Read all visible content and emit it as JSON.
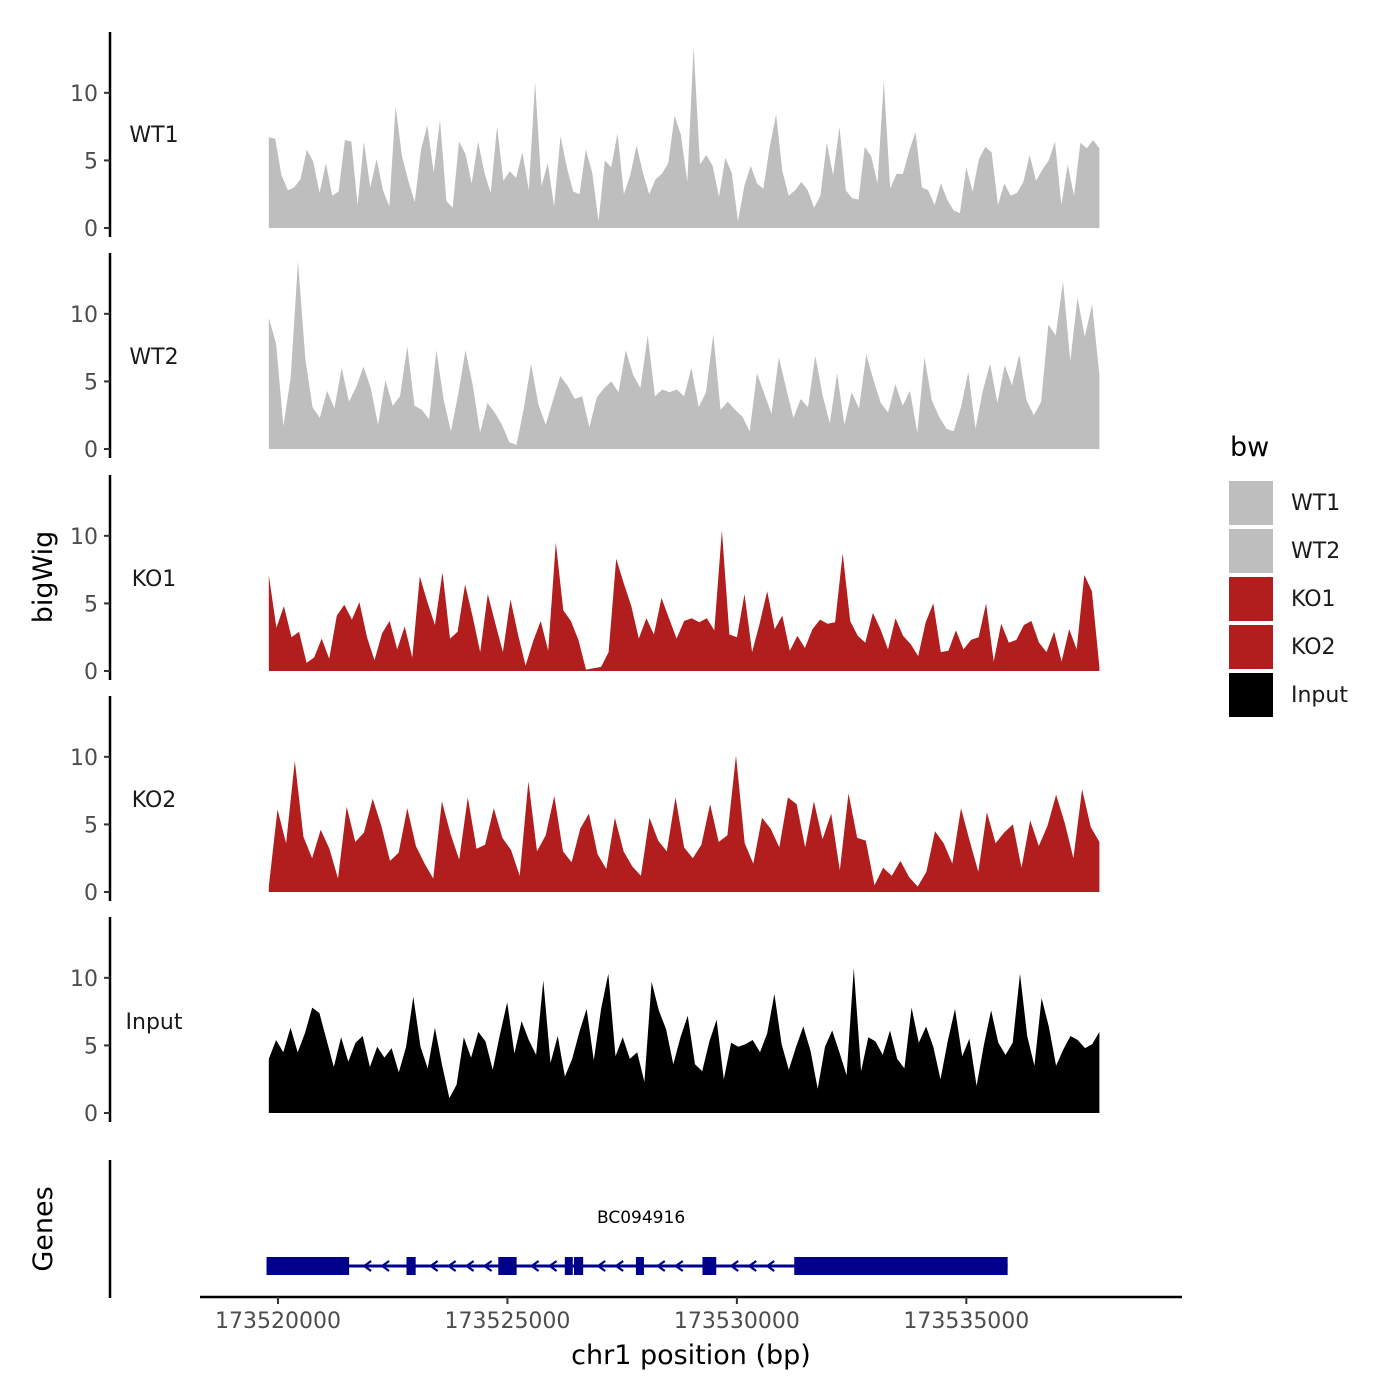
{
  "chart_data": {
    "type": "area",
    "y_axis_title": "bigWig",
    "genes_axis_title": "Genes",
    "xlabel": "chr1 position (bp)",
    "xlim": [
      173518300,
      173539700
    ],
    "x_ticks": [
      173520000,
      173525000,
      173530000,
      173535000
    ],
    "x_tick_labels": [
      "173520000",
      "173525000",
      "173530000",
      "173535000"
    ],
    "ylim": [
      0,
      14.5
    ],
    "y_ticks": [
      0,
      5,
      10
    ],
    "y_tick_labels": [
      "0",
      "5",
      "10"
    ],
    "legend": {
      "title": "bw",
      "position": "right",
      "entries": [
        {
          "label": "WT1",
          "color": "#bebebe"
        },
        {
          "label": "WT2",
          "color": "#bebebe"
        },
        {
          "label": "KO1",
          "color": "#b21d1d"
        },
        {
          "label": "KO2",
          "color": "#b21d1d"
        },
        {
          "label": "Input",
          "color": "#000000"
        }
      ]
    },
    "track_start": 173519800,
    "track_end": 173537900,
    "series": [
      {
        "name": "WT1",
        "color": "#bebebe",
        "values": [
          6.7,
          6.6,
          3.9,
          2.8,
          3.0,
          3.6,
          5.8,
          4.9,
          2.6,
          4.8,
          2.4,
          2.7,
          6.5,
          6.4,
          1.7,
          6.4,
          3.0,
          5.1,
          2.8,
          1.6,
          9.0,
          5.3,
          3.5,
          1.9,
          5.8,
          7.6,
          4.1,
          8.0,
          2.0,
          1.5,
          6.4,
          5.5,
          3.3,
          6.4,
          4.1,
          2.6,
          7.5,
          3.5,
          4.2,
          3.7,
          5.6,
          2.8,
          10.8,
          3.1,
          4.8,
          1.6,
          6.8,
          4.5,
          2.7,
          2.5,
          5.8,
          4.1,
          0.5,
          5.0,
          4.5,
          7.0,
          2.5,
          3.9,
          6.1,
          4.1,
          2.5,
          3.6,
          4.0,
          4.8,
          8.3,
          6.9,
          3.4,
          13.4,
          4.7,
          5.4,
          4.6,
          2.3,
          5.2,
          4.1,
          0.5,
          3.1,
          4.6,
          3.3,
          2.9,
          6.0,
          8.4,
          4.2,
          2.4,
          2.8,
          3.4,
          2.8,
          1.5,
          2.4,
          6.3,
          3.9,
          7.5,
          2.8,
          2.2,
          2.1,
          6.0,
          5.3,
          3.3,
          10.9,
          2.9,
          4.0,
          4.0,
          5.7,
          7.1,
          3.0,
          2.8,
          1.7,
          3.3,
          2.1,
          1.3,
          1.1,
          4.5,
          2.7,
          5.1,
          6.0,
          5.6,
          1.7,
          3.3,
          2.4,
          2.6,
          3.4,
          5.4,
          3.5,
          4.3,
          5.0,
          6.4,
          1.7,
          4.7,
          2.4,
          6.3,
          5.9,
          6.5,
          5.9
        ]
      },
      {
        "name": "WT2",
        "color": "#bebebe",
        "values": [
          9.7,
          7.8,
          1.7,
          5.3,
          13.9,
          6.7,
          3.1,
          2.3,
          4.3,
          3.0,
          6.0,
          3.5,
          4.6,
          6.1,
          4.5,
          1.8,
          5.1,
          3.2,
          3.9,
          7.6,
          3.2,
          2.9,
          2.2,
          7.3,
          3.6,
          1.3,
          4.1,
          7.3,
          4.7,
          1.2,
          3.4,
          2.7,
          1.8,
          0.5,
          0.3,
          3.0,
          6.3,
          3.3,
          1.8,
          3.6,
          5.4,
          4.7,
          3.7,
          3.9,
          1.6,
          3.8,
          4.5,
          5.0,
          4.2,
          7.3,
          5.5,
          4.5,
          8.4,
          3.9,
          4.4,
          4.2,
          4.4,
          3.9,
          6.0,
          3.1,
          4.2,
          8.5,
          2.9,
          3.5,
          2.9,
          2.4,
          1.3,
          5.6,
          4.1,
          2.6,
          6.8,
          4.5,
          2.3,
          3.7,
          3.1,
          6.9,
          4.0,
          1.9,
          5.6,
          1.8,
          4.2,
          3.0,
          7.0,
          5.1,
          3.4,
          2.7,
          4.8,
          3.2,
          4.3,
          1.2,
          6.8,
          3.6,
          2.4,
          1.5,
          1.3,
          3.1,
          5.7,
          1.5,
          4.3,
          6.3,
          3.4,
          6.2,
          4.7,
          7.0,
          3.6,
          2.5,
          3.5,
          9.2,
          8.4,
          12.4,
          6.5,
          11.2,
          8.3,
          10.7,
          5.5
        ]
      },
      {
        "name": "KO1",
        "color": "#b21d1d",
        "values": [
          7.1,
          3.2,
          4.8,
          2.5,
          2.9,
          0.6,
          1.0,
          2.4,
          0.9,
          4.1,
          4.9,
          3.8,
          5.1,
          2.5,
          0.8,
          2.8,
          3.7,
          1.6,
          3.3,
          1.0,
          7.0,
          5.1,
          3.4,
          7.3,
          2.4,
          2.9,
          6.4,
          4.0,
          1.4,
          5.7,
          3.5,
          1.4,
          5.3,
          2.7,
          0.4,
          2.2,
          3.7,
          1.5,
          9.5,
          4.5,
          3.7,
          2.3,
          0.1,
          0.2,
          0.3,
          1.4,
          8.3,
          6.5,
          4.8,
          2.4,
          3.9,
          2.7,
          5.4,
          3.9,
          2.4,
          3.7,
          3.9,
          3.6,
          3.9,
          3.0,
          10.4,
          2.7,
          2.5,
          5.7,
          1.4,
          3.5,
          5.9,
          3.1,
          4.1,
          1.5,
          2.6,
          1.7,
          3.1,
          3.8,
          3.5,
          3.6,
          8.7,
          3.7,
          2.6,
          2.1,
          4.3,
          3.1,
          1.6,
          3.9,
          2.6,
          2.0,
          1.1,
          3.6,
          5.0,
          1.4,
          1.5,
          3.0,
          1.6,
          2.3,
          2.5,
          5.0,
          0.7,
          3.5,
          2.1,
          2.3,
          3.4,
          3.7,
          2.1,
          1.4,
          2.9,
          0.7,
          3.1,
          1.6,
          7.1,
          5.9,
          0.3
        ]
      },
      {
        "name": "KO2",
        "color": "#b21d1d",
        "values": [
          0.4,
          6.1,
          3.6,
          9.7,
          4.1,
          2.5,
          4.6,
          3.2,
          1.0,
          6.3,
          3.7,
          4.4,
          6.9,
          4.9,
          2.3,
          2.9,
          6.2,
          3.4,
          2.1,
          1.0,
          6.7,
          4.3,
          2.4,
          7.0,
          3.2,
          3.5,
          6.2,
          4.0,
          3.1,
          1.2,
          8.2,
          3.0,
          4.2,
          7.1,
          3.0,
          2.2,
          4.7,
          5.8,
          2.8,
          1.7,
          5.5,
          3.0,
          1.9,
          1.2,
          5.5,
          3.8,
          3.0,
          7.0,
          3.3,
          2.5,
          3.5,
          6.5,
          3.7,
          4.2,
          10.1,
          3.6,
          2.1,
          5.5,
          4.7,
          3.3,
          7.0,
          6.5,
          3.3,
          6.7,
          3.9,
          5.8,
          1.6,
          7.3,
          4.0,
          3.8,
          0.5,
          1.8,
          1.2,
          2.3,
          1.1,
          0.4,
          1.5,
          4.5,
          3.6,
          2.1,
          6.2,
          3.8,
          1.5,
          5.9,
          3.6,
          4.4,
          5.0,
          1.8,
          5.3,
          3.4,
          4.9,
          7.2,
          5.1,
          2.5,
          7.6,
          4.8,
          3.7
        ]
      },
      {
        "name": "Input",
        "color": "#000000",
        "values": [
          4.0,
          5.4,
          4.5,
          6.3,
          4.5,
          5.9,
          7.8,
          7.4,
          5.4,
          3.4,
          5.6,
          3.8,
          5.2,
          5.7,
          3.4,
          4.9,
          4.1,
          4.8,
          3.0,
          4.9,
          8.6,
          4.9,
          3.3,
          6.3,
          3.5,
          1.1,
          2.1,
          5.6,
          4.1,
          6.0,
          5.3,
          3.2,
          5.8,
          8.2,
          4.4,
          6.8,
          5.4,
          4.3,
          9.8,
          3.7,
          5.7,
          2.7,
          4.0,
          6.0,
          7.7,
          3.9,
          7.7,
          10.3,
          4.2,
          5.6,
          4.0,
          4.5,
          2.3,
          9.7,
          7.6,
          6.2,
          3.6,
          5.6,
          7.2,
          3.6,
          3.1,
          5.3,
          6.9,
          2.5,
          5.2,
          4.9,
          5.1,
          5.4,
          4.5,
          5.9,
          8.8,
          5.1,
          3.2,
          4.9,
          6.4,
          4.6,
          1.8,
          4.9,
          6.1,
          4.5,
          2.8,
          10.7,
          3.1,
          5.6,
          5.3,
          4.3,
          6.1,
          4.0,
          3.3,
          7.8,
          5.2,
          6.4,
          4.9,
          2.5,
          5.3,
          7.7,
          4.2,
          5.5,
          2.0,
          5.0,
          7.6,
          5.2,
          4.3,
          5.2,
          10.3,
          5.7,
          3.5,
          8.5,
          6.4,
          3.5,
          4.7,
          5.7,
          5.4,
          4.8,
          5.1,
          6.0
        ]
      }
    ],
    "genes": {
      "name": "BC094916",
      "strand": "-",
      "color": "#00008b",
      "exons": [
        [
          173519750,
          173521550
        ],
        [
          173522800,
          173523000
        ],
        [
          173524800,
          173525200
        ],
        [
          173526250,
          173526350
        ],
        [
          173526450,
          173526650
        ],
        [
          173527800,
          173527950
        ],
        [
          173529250,
          173529550
        ],
        [
          173531250,
          173535900
        ]
      ]
    }
  }
}
